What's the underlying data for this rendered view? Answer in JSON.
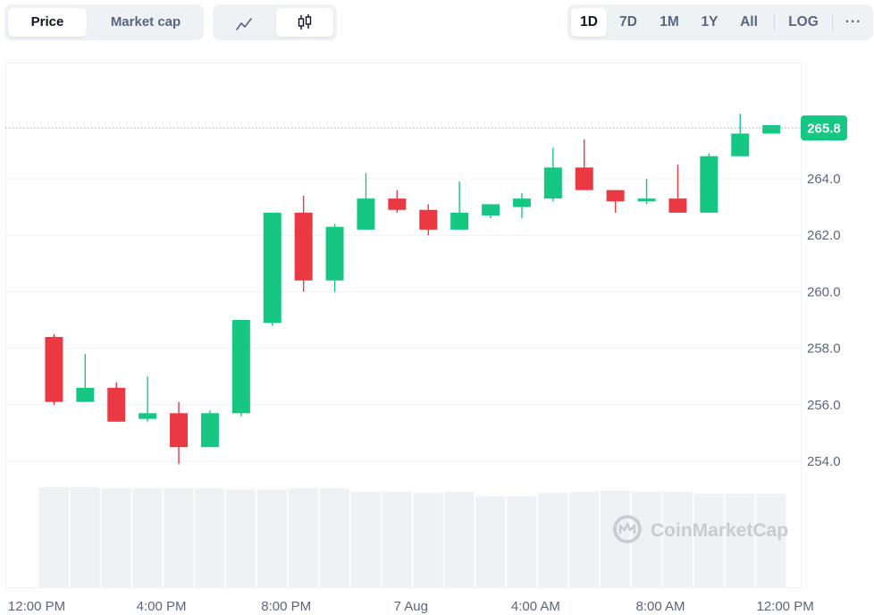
{
  "toolbar": {
    "price_tab": "Price",
    "market_cap_tab": "Market cap",
    "line_icon": "line-chart-icon",
    "candle_icon": "candlestick-icon",
    "timeframes": [
      "1D",
      "7D",
      "1M",
      "1Y",
      "All"
    ],
    "active_timeframe": "1D",
    "log_label": "LOG",
    "more_icon": "more-dots-icon",
    "more_label": "···"
  },
  "watermark": {
    "text": "CoinMarketCap"
  },
  "colors": {
    "up": "#16c784",
    "down": "#ea3943",
    "volume": "#eff2f5",
    "grid": "#eff2f5",
    "price_tag": "#16c784"
  },
  "chart_data": {
    "type": "candlestick",
    "current_price": 265.8,
    "current_price_label": "265.8",
    "y_ticks": [
      "264.0",
      "262.0",
      "260.0",
      "258.0",
      "256.0",
      "254.0"
    ],
    "y_tick_values": [
      264,
      262,
      260,
      258,
      256,
      254
    ],
    "ylim": [
      252.3,
      267.9
    ],
    "x_ticks": [
      "12:00 PM",
      "4:00 PM",
      "8:00 PM",
      "7 Aug",
      "4:00 AM",
      "8:00 AM",
      "12:00 PM"
    ],
    "x_tick_index": [
      0,
      4,
      8,
      12,
      16,
      20,
      24
    ],
    "candles": [
      {
        "o": 258.4,
        "h": 258.5,
        "l": 256.0,
        "c": 256.1
      },
      {
        "o": 256.1,
        "h": 257.8,
        "l": 256.1,
        "c": 256.6
      },
      {
        "o": 256.6,
        "h": 256.8,
        "l": 255.4,
        "c": 255.4
      },
      {
        "o": 255.5,
        "h": 257.0,
        "l": 255.4,
        "c": 255.7
      },
      {
        "o": 255.7,
        "h": 256.1,
        "l": 253.9,
        "c": 254.5
      },
      {
        "o": 254.5,
        "h": 255.8,
        "l": 254.5,
        "c": 255.7
      },
      {
        "o": 255.7,
        "h": 259.0,
        "l": 255.6,
        "c": 259.0
      },
      {
        "o": 258.9,
        "h": 262.8,
        "l": 258.8,
        "c": 262.8
      },
      {
        "o": 262.8,
        "h": 263.4,
        "l": 260.0,
        "c": 260.4
      },
      {
        "o": 260.4,
        "h": 262.4,
        "l": 260.0,
        "c": 262.3
      },
      {
        "o": 262.2,
        "h": 264.2,
        "l": 262.2,
        "c": 263.3
      },
      {
        "o": 263.3,
        "h": 263.6,
        "l": 262.8,
        "c": 262.9
      },
      {
        "o": 262.9,
        "h": 263.1,
        "l": 262.0,
        "c": 262.2
      },
      {
        "o": 262.2,
        "h": 263.9,
        "l": 262.2,
        "c": 262.8
      },
      {
        "o": 262.7,
        "h": 263.1,
        "l": 262.6,
        "c": 263.1
      },
      {
        "o": 263.0,
        "h": 263.5,
        "l": 262.6,
        "c": 263.3
      },
      {
        "o": 263.3,
        "h": 265.1,
        "l": 263.2,
        "c": 264.4
      },
      {
        "o": 264.4,
        "h": 265.4,
        "l": 263.6,
        "c": 263.6
      },
      {
        "o": 263.6,
        "h": 263.6,
        "l": 262.8,
        "c": 263.2
      },
      {
        "o": 263.2,
        "h": 264.0,
        "l": 263.1,
        "c": 263.3
      },
      {
        "o": 263.3,
        "h": 264.5,
        "l": 262.8,
        "c": 262.8
      },
      {
        "o": 262.8,
        "h": 264.9,
        "l": 262.8,
        "c": 264.8
      },
      {
        "o": 264.8,
        "h": 266.3,
        "l": 264.8,
        "c": 265.6
      },
      {
        "o": 265.6,
        "h": 265.9,
        "l": 265.6,
        "c": 265.9
      }
    ],
    "volume_relative": [
      0.91,
      0.91,
      0.9,
      0.9,
      0.9,
      0.9,
      0.89,
      0.89,
      0.9,
      0.9,
      0.87,
      0.87,
      0.86,
      0.87,
      0.83,
      0.83,
      0.86,
      0.87,
      0.88,
      0.87,
      0.87,
      0.85,
      0.85,
      0.85
    ]
  }
}
